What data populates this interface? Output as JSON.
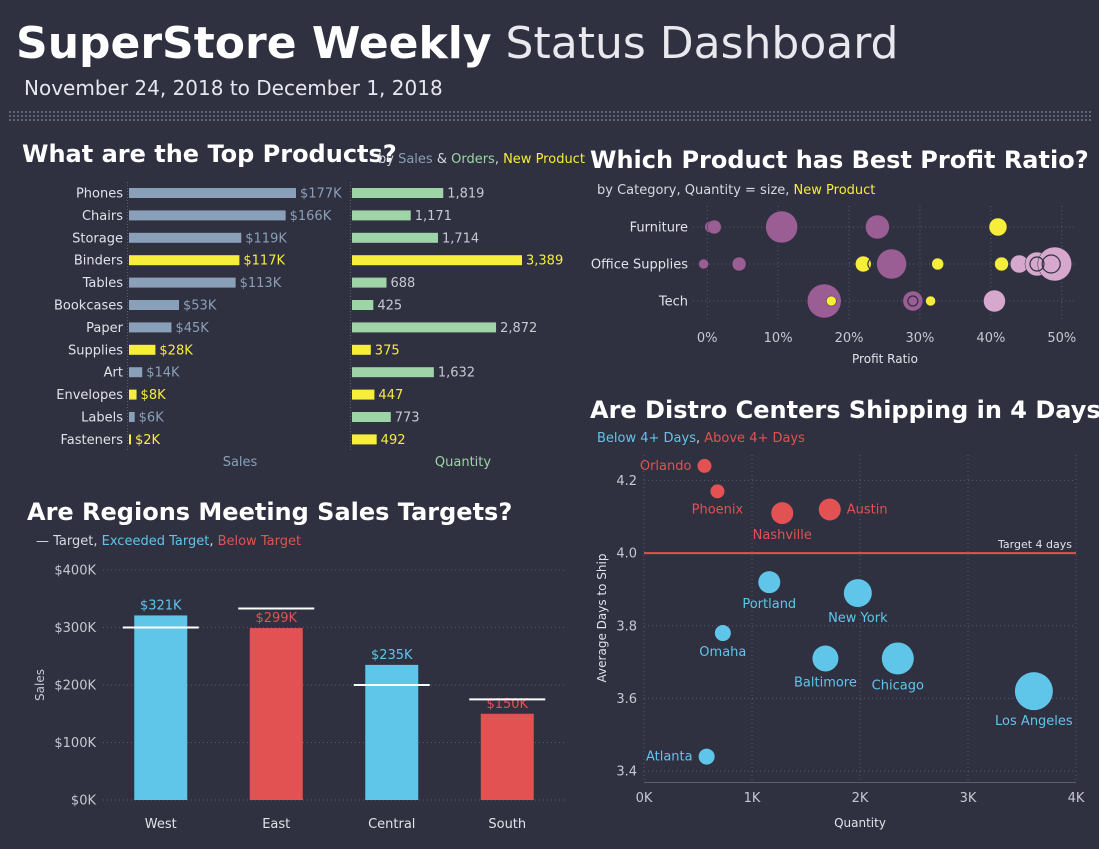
{
  "header": {
    "title_bold": "SuperStore Weekly",
    "title_light": "Status Dashboard",
    "date_range": "November 24, 2018 to December 1, 2018"
  },
  "colors": {
    "bg": "#2f3040",
    "sales": "#8aa0b8",
    "quantity": "#9ed4a8",
    "new_product": "#f6ee3a",
    "blue": "#5fc6ea",
    "red": "#e25252",
    "purple": "#9a5d94",
    "pink": "#d6a8ce",
    "axis_text": "#c8c8d2",
    "grid": "#5a5d70"
  },
  "top_products": {
    "title": "What are the Top Products?",
    "subtitle": {
      "prefix": "by ",
      "sales": "Sales",
      "amp": " & ",
      "orders": "Orders",
      "comma": ", ",
      "new": "New Product"
    }
  },
  "regions": {
    "title": "Are Regions Meeting Sales Targets?",
    "subtitle": {
      "dash": "— Target",
      "comma1": ", ",
      "exceeded": "Exceeded Target",
      "comma2": ", ",
      "below": "Below Target"
    }
  },
  "profit": {
    "title": "Which Product has Best Profit Ratio?",
    "subtitle": {
      "prefix": "by Category, Quantity = size, ",
      "new": "New Product"
    }
  },
  "distro": {
    "title": "Are Distro Centers Shipping in 4 Days?",
    "subtitle": {
      "below": "Below 4+ Days",
      "comma": ", ",
      "above": "Above 4+ Days"
    }
  },
  "chart_data": [
    {
      "type": "bar",
      "title": "What are the Top Products?",
      "categories": [
        "Phones",
        "Chairs",
        "Storage",
        "Binders",
        "Tables",
        "Bookcases",
        "Paper",
        "Supplies",
        "Art",
        "Envelopes",
        "Labels",
        "Fasteners"
      ],
      "new_product": [
        false,
        false,
        false,
        true,
        false,
        false,
        false,
        true,
        false,
        true,
        false,
        true
      ],
      "series": [
        {
          "name": "Sales",
          "values": [
            177,
            166,
            119,
            117,
            113,
            53,
            45,
            28,
            14,
            8,
            6,
            2
          ],
          "labels": [
            "$177K",
            "$166K",
            "$119K",
            "$117K",
            "$113K",
            "$53K",
            "$45K",
            "$28K",
            "$14K",
            "$8K",
            "$6K",
            "$2K"
          ],
          "max": 177
        },
        {
          "name": "Quantity",
          "values": [
            1819,
            1171,
            1714,
            3389,
            688,
            425,
            2872,
            375,
            1632,
            447,
            773,
            492
          ],
          "labels": [
            "1,819",
            "1,171",
            "1,714",
            "3,389",
            "688",
            "425",
            "2,872",
            "375",
            "1,632",
            "447",
            "773",
            "492"
          ],
          "max": 3389
        }
      ],
      "xlabels": [
        "Sales",
        "Quantity"
      ]
    },
    {
      "type": "bar",
      "title": "Are Regions Meeting Sales Targets?",
      "categories": [
        "West",
        "East",
        "Central",
        "South"
      ],
      "values": [
        321,
        299,
        235,
        150
      ],
      "value_labels": [
        "$321K",
        "$299K",
        "$235K",
        "$150K"
      ],
      "targets": [
        300,
        333,
        200,
        175
      ],
      "status": [
        "exceeded",
        "below",
        "exceeded",
        "below"
      ],
      "ylabel": "Sales",
      "ylim": [
        0,
        400
      ],
      "yticks": [
        0,
        100,
        200,
        300,
        400
      ],
      "ytick_labels": [
        "$0K",
        "$100K",
        "$200K",
        "$300K",
        "$400K"
      ]
    },
    {
      "type": "scatter",
      "title": "Which Product has Best Profit Ratio?",
      "categories": [
        "Furniture",
        "Office Supplies",
        "Tech"
      ],
      "xlabel": "Profit Ratio",
      "xlim": [
        -2,
        52
      ],
      "xticks": [
        0,
        10,
        20,
        30,
        40,
        50
      ],
      "xtick_labels": [
        "0%",
        "10%",
        "20%",
        "30%",
        "40%",
        "50%"
      ],
      "points": [
        {
          "cat": 0,
          "x": 0.5,
          "r": 6,
          "kind": "purple"
        },
        {
          "cat": 0,
          "x": 1.0,
          "r": 7,
          "kind": "purple"
        },
        {
          "cat": 0,
          "x": 10.5,
          "r": 16,
          "kind": "purple"
        },
        {
          "cat": 0,
          "x": 24.0,
          "r": 12,
          "kind": "purple"
        },
        {
          "cat": 0,
          "x": 41.0,
          "r": 9,
          "kind": "new"
        },
        {
          "cat": 1,
          "x": -0.5,
          "r": 5,
          "kind": "purple"
        },
        {
          "cat": 1,
          "x": 4.5,
          "r": 7,
          "kind": "purple"
        },
        {
          "cat": 1,
          "x": 22.0,
          "r": 8,
          "kind": "new"
        },
        {
          "cat": 1,
          "x": 23.5,
          "r": 6,
          "kind": "ring"
        },
        {
          "cat": 1,
          "x": 26.0,
          "r": 15,
          "kind": "purple"
        },
        {
          "cat": 1,
          "x": 32.5,
          "r": 6,
          "kind": "new"
        },
        {
          "cat": 1,
          "x": 41.5,
          "r": 7,
          "kind": "new"
        },
        {
          "cat": 1,
          "x": 44.0,
          "r": 9,
          "kind": "pink"
        },
        {
          "cat": 1,
          "x": 46.5,
          "r": 12,
          "kind": "pink"
        },
        {
          "cat": 1,
          "x": 49.0,
          "r": 17,
          "kind": "pink"
        },
        {
          "cat": 1,
          "x": 46.5,
          "r": 7,
          "kind": "ring"
        },
        {
          "cat": 1,
          "x": 48.5,
          "r": 9,
          "kind": "ring"
        },
        {
          "cat": 2,
          "x": 16.5,
          "r": 17,
          "kind": "purple"
        },
        {
          "cat": 2,
          "x": 17.5,
          "r": 5,
          "kind": "new"
        },
        {
          "cat": 2,
          "x": 29.0,
          "r": 10,
          "kind": "purple"
        },
        {
          "cat": 2,
          "x": 29.0,
          "r": 5,
          "kind": "ring"
        },
        {
          "cat": 2,
          "x": 31.5,
          "r": 5,
          "kind": "new"
        },
        {
          "cat": 2,
          "x": 40.5,
          "r": 11,
          "kind": "pink"
        }
      ]
    },
    {
      "type": "scatter",
      "title": "Are Distro Centers Shipping in 4 Days?",
      "xlabel": "Quantity",
      "ylabel": "Average Days to Ship",
      "xlim": [
        0,
        4000
      ],
      "ylim": [
        3.37,
        4.27
      ],
      "xticks": [
        0,
        1000,
        2000,
        3000,
        4000
      ],
      "xtick_labels": [
        "0K",
        "1K",
        "2K",
        "3K",
        "4K"
      ],
      "yticks": [
        3.4,
        3.6,
        3.8,
        4.0,
        4.2
      ],
      "ytick_labels": [
        "3.4",
        "3.6",
        "3.8",
        "4.0",
        "4.2"
      ],
      "target": 4.0,
      "target_label": "Target 4 days",
      "points": [
        {
          "name": "Orlando",
          "x": 560,
          "y": 4.24,
          "r": 7,
          "status": "above",
          "label_pos": "left"
        },
        {
          "name": "Phoenix",
          "x": 680,
          "y": 4.17,
          "r": 7,
          "status": "above",
          "label_pos": "below"
        },
        {
          "name": "Nashville",
          "x": 1280,
          "y": 4.11,
          "r": 11,
          "status": "above",
          "label_pos": "below"
        },
        {
          "name": "Austin",
          "x": 1720,
          "y": 4.12,
          "r": 11,
          "status": "above",
          "label_pos": "right"
        },
        {
          "name": "Portland",
          "x": 1160,
          "y": 3.92,
          "r": 11,
          "status": "below",
          "label_pos": "below"
        },
        {
          "name": "New York",
          "x": 1980,
          "y": 3.89,
          "r": 14,
          "status": "below",
          "label_pos": "below"
        },
        {
          "name": "Omaha",
          "x": 730,
          "y": 3.78,
          "r": 8,
          "status": "below",
          "label_pos": "below"
        },
        {
          "name": "Baltimore",
          "x": 1680,
          "y": 3.71,
          "r": 13,
          "status": "below",
          "label_pos": "below"
        },
        {
          "name": "Chicago",
          "x": 2350,
          "y": 3.71,
          "r": 16,
          "status": "below",
          "label_pos": "below"
        },
        {
          "name": "Los Angeles",
          "x": 3610,
          "y": 3.62,
          "r": 19,
          "status": "below",
          "label_pos": "below"
        },
        {
          "name": "Atlanta",
          "x": 580,
          "y": 3.44,
          "r": 8,
          "status": "below",
          "label_pos": "left"
        }
      ]
    }
  ]
}
